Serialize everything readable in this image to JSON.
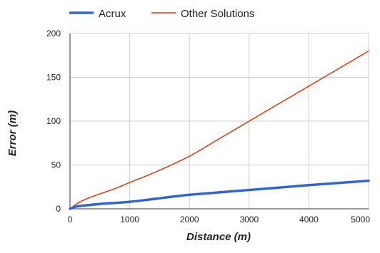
{
  "chart_data": {
    "type": "line",
    "title": "",
    "xlabel": "Distance (m)",
    "ylabel": "Error (m)",
    "xlim": [
      0,
      5000
    ],
    "ylim": [
      0,
      200
    ],
    "x_ticks": [
      0,
      1000,
      2000,
      3000,
      4000,
      5000
    ],
    "y_ticks": [
      0,
      50,
      100,
      150,
      200
    ],
    "grid": true,
    "legend_position": "top-left",
    "series": [
      {
        "name": "Acrux",
        "color": "#3366cc",
        "x": [
          0,
          50,
          100,
          200,
          300,
          500,
          1000,
          1500,
          2000,
          3000,
          4000,
          5000
        ],
        "y": [
          0,
          1.5,
          2.5,
          3.5,
          4.2,
          5.5,
          8,
          12,
          16,
          21.5,
          27,
          32
        ]
      },
      {
        "name": "Other Solutions",
        "color": "#dc3912",
        "x": [
          0,
          50,
          100,
          200,
          300,
          500,
          750,
          1000,
          1500,
          2000,
          2500,
          3000,
          3500,
          4000,
          4500,
          5000
        ],
        "y": [
          0,
          2.5,
          5,
          9,
          12,
          17,
          23,
          30,
          44,
          60,
          80,
          100,
          120,
          140,
          160,
          180
        ]
      }
    ]
  }
}
